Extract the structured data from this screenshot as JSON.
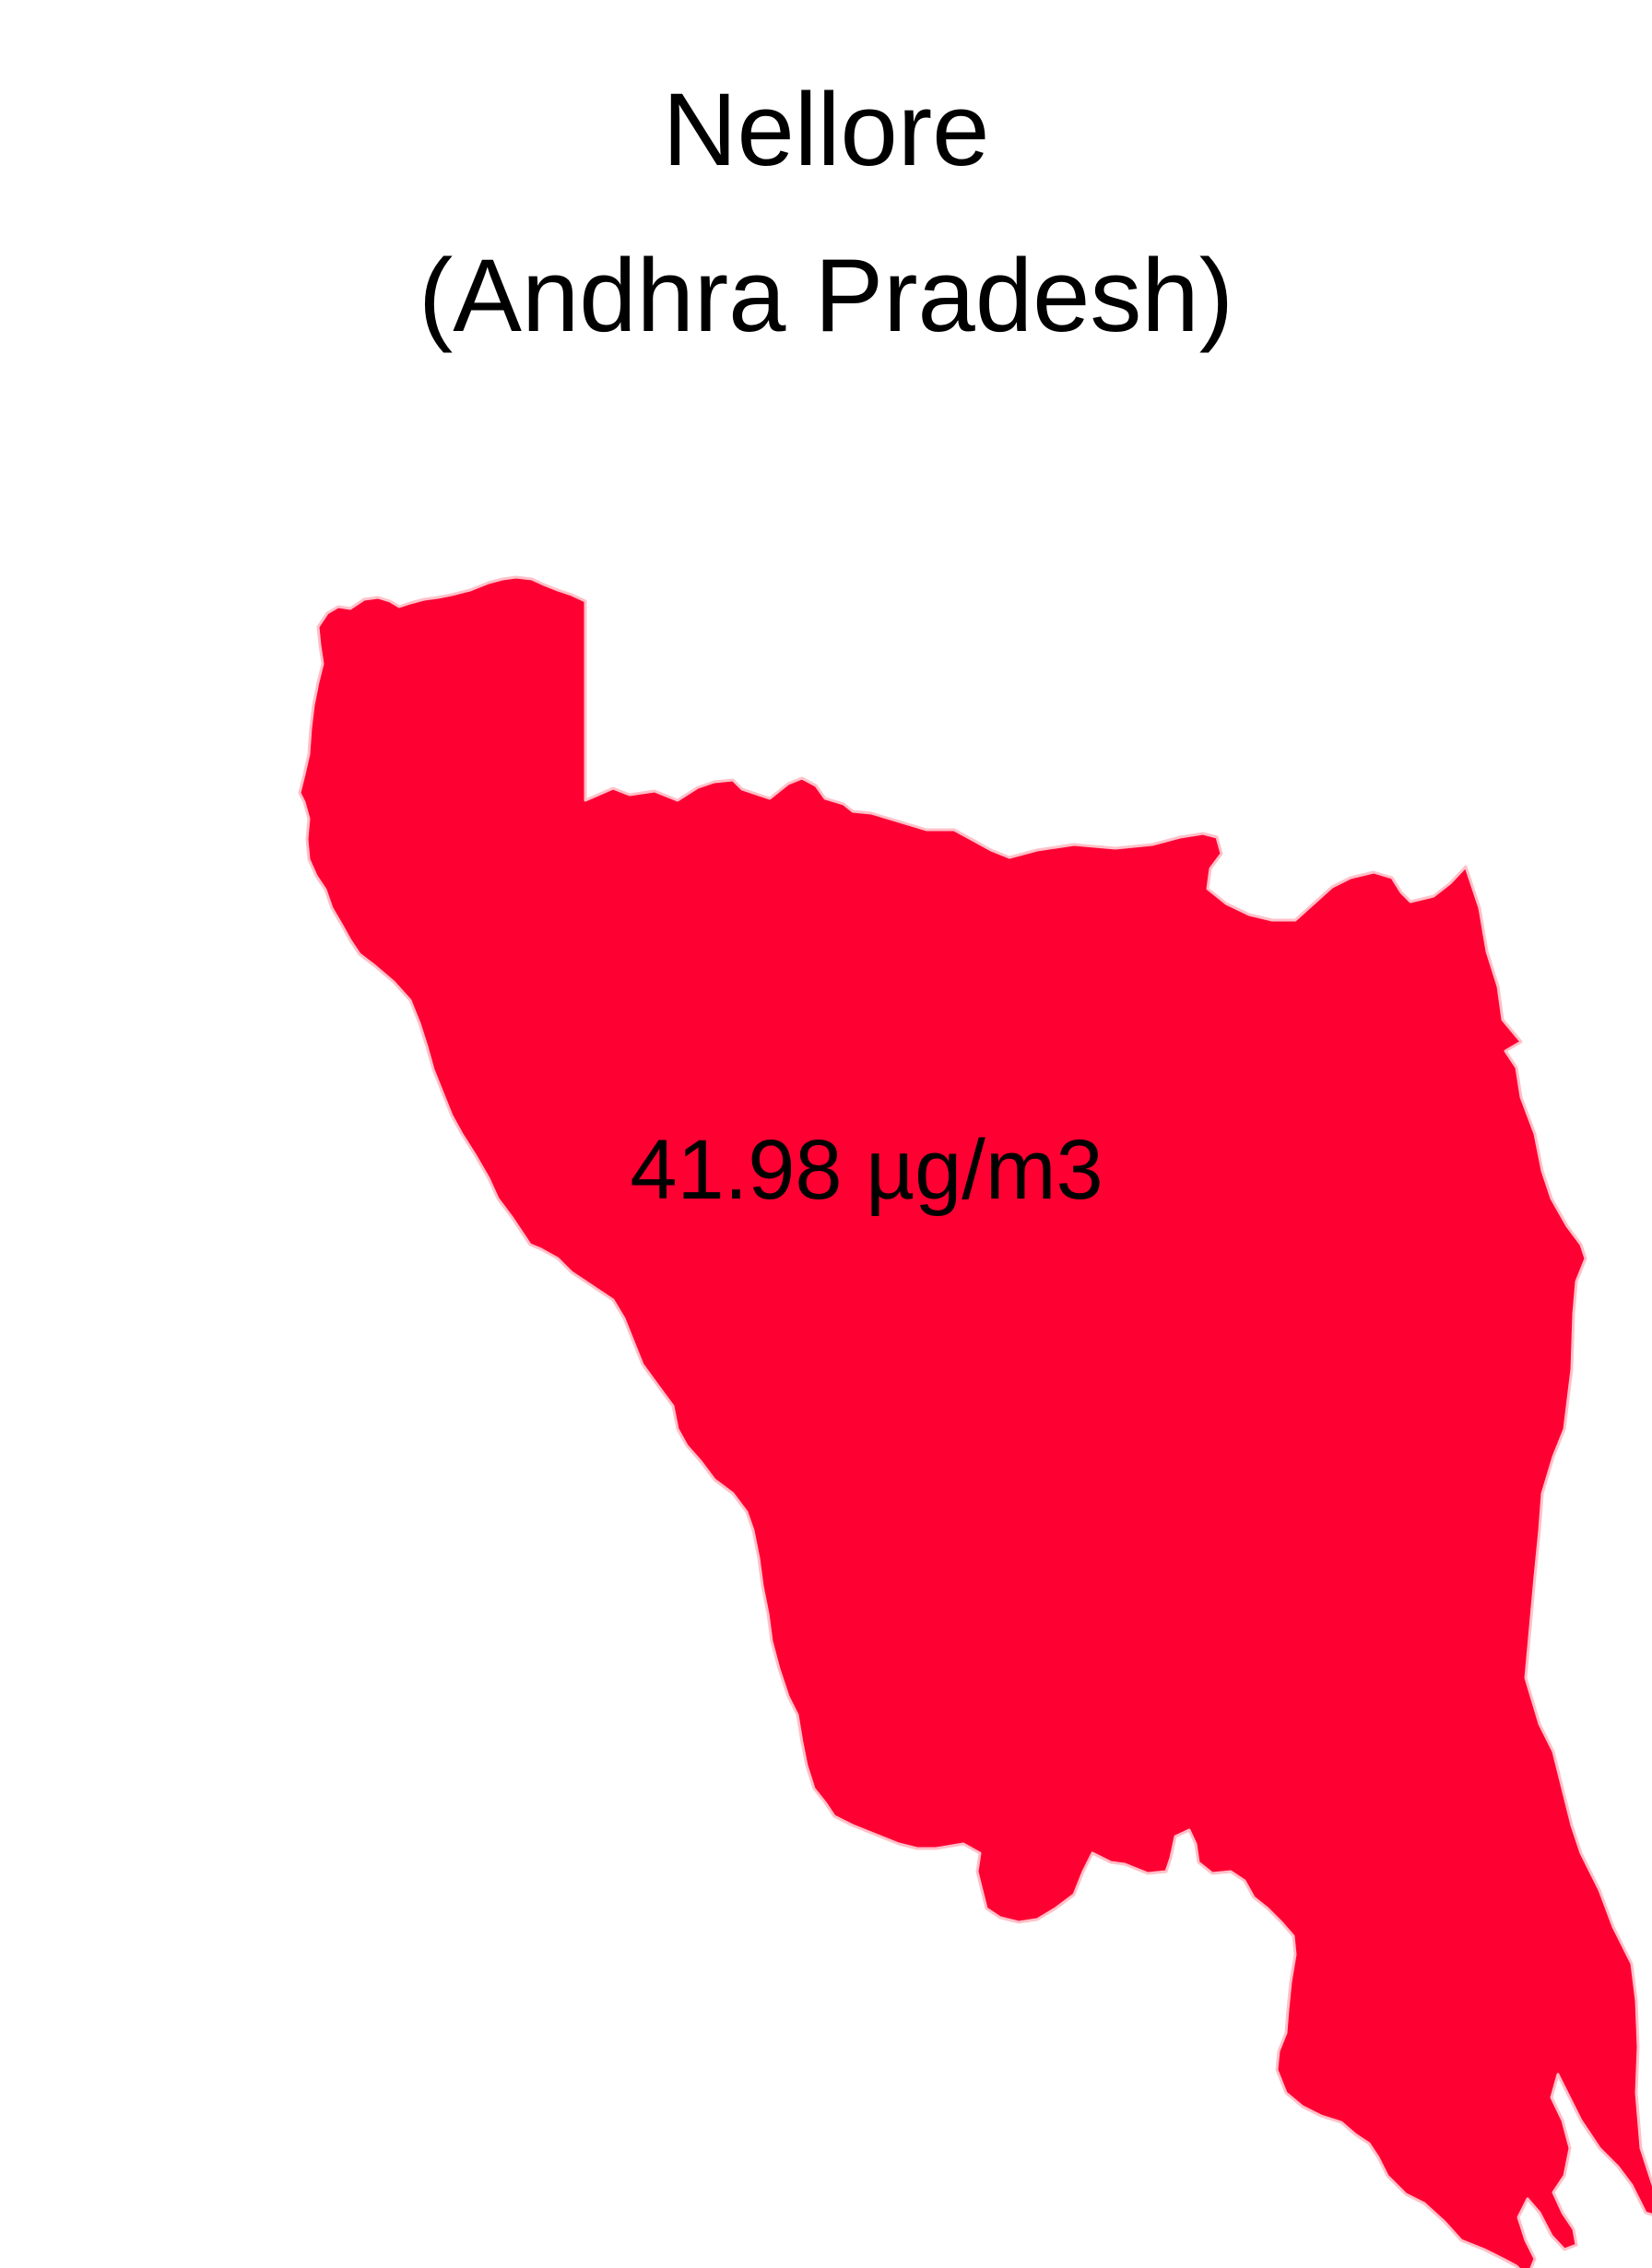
{
  "title": {
    "line1": "Nellore",
    "line2": "(Andhra Pradesh)"
  },
  "district": {
    "name": "Nellore",
    "state": "Andhra Pradesh",
    "value_label": "41.98 µg/m3",
    "value": 41.98,
    "unit": "µg/m3",
    "fill_color": "#FF0033",
    "border_color": "#FFC0C8"
  },
  "background_color": "#FFFFFF"
}
